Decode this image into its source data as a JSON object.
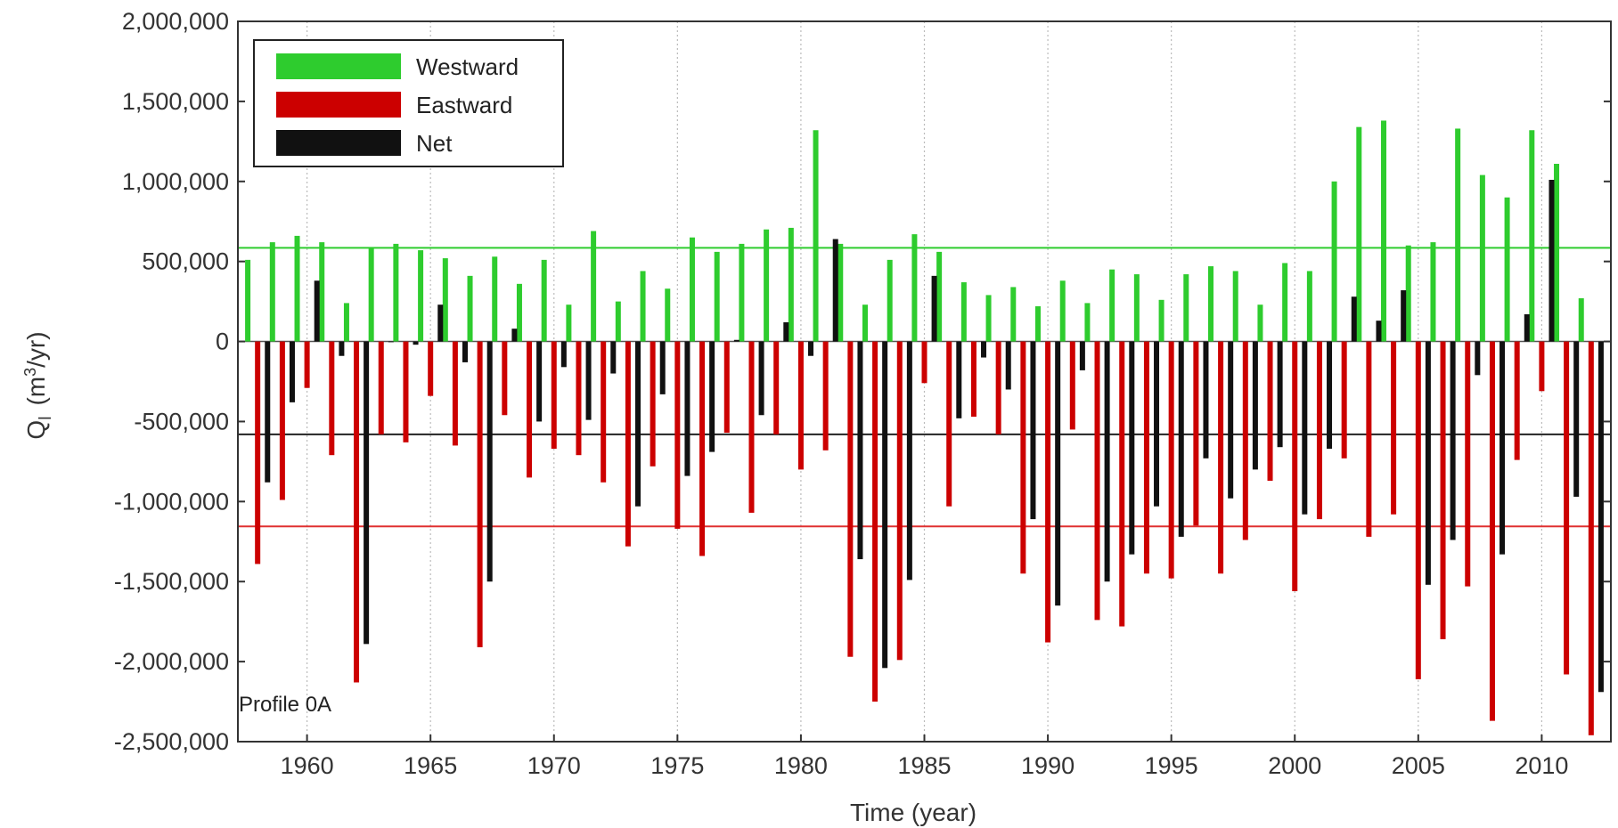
{
  "chart_data": {
    "type": "bar",
    "xlabel": "Time  (year)",
    "ylabel_main": "Q",
    "ylabel_sub": "l",
    "ylabel_unit_pre": "(m",
    "ylabel_unit_sup": "3",
    "ylabel_unit_post": "/yr)",
    "annotation": "Profile 0A",
    "xlim": [
      1957.2,
      2012.8
    ],
    "ylim": [
      -2500000,
      2000000
    ],
    "x_ticks": [
      1960,
      1965,
      1970,
      1975,
      1980,
      1985,
      1990,
      1995,
      2000,
      2005,
      2010
    ],
    "x_tick_labels": [
      "1960",
      "1965",
      "1970",
      "1975",
      "1980",
      "1985",
      "1990",
      "1995",
      "2000",
      "2005",
      "2010"
    ],
    "y_ticks": [
      -2500000,
      -2000000,
      -1500000,
      -1000000,
      -500000,
      0,
      500000,
      1000000,
      1500000,
      2000000
    ],
    "y_tick_labels": [
      "-2,500,000",
      "-2,000,000",
      "-1,500,000",
      "-1,000,000",
      "-500,000",
      "0",
      "500,000",
      "1,000,000",
      "1,500,000",
      "2,000,000"
    ],
    "grid": "vertical dotted at x ticks",
    "legend_position": "top-left",
    "years": [
      1958,
      1959,
      1960,
      1961,
      1962,
      1963,
      1964,
      1965,
      1966,
      1967,
      1968,
      1969,
      1970,
      1971,
      1972,
      1973,
      1974,
      1975,
      1976,
      1977,
      1978,
      1979,
      1980,
      1981,
      1982,
      1983,
      1984,
      1985,
      1986,
      1987,
      1988,
      1989,
      1990,
      1991,
      1992,
      1993,
      1994,
      1995,
      1996,
      1997,
      1998,
      1999,
      2000,
      2001,
      2002,
      2003,
      2004,
      2005,
      2006,
      2007,
      2008,
      2009,
      2010,
      2011,
      2012
    ],
    "series": [
      {
        "name": "Westward",
        "color": "#2ecc2e",
        "values": [
          510000,
          620000,
          660000,
          620000,
          240000,
          590000,
          610000,
          570000,
          520000,
          410000,
          530000,
          360000,
          510000,
          230000,
          690000,
          250000,
          440000,
          330000,
          650000,
          560000,
          610000,
          700000,
          710000,
          1320000,
          610000,
          230000,
          510000,
          670000,
          560000,
          370000,
          290000,
          340000,
          220000,
          380000,
          240000,
          450000,
          420000,
          260000,
          420000,
          470000,
          440000,
          230000,
          490000,
          440000,
          1000000,
          1340000,
          1380000,
          600000,
          620000,
          1330000,
          1040000,
          900000,
          1320000,
          1110000,
          270000
        ]
      },
      {
        "name": "Eastward",
        "color": "#cc0000",
        "values": [
          -1390000,
          -990000,
          -290000,
          -710000,
          -2130000,
          -580000,
          -630000,
          -340000,
          -650000,
          -1910000,
          -460000,
          -850000,
          -670000,
          -710000,
          -880000,
          -1280000,
          -780000,
          -1170000,
          -1340000,
          -570000,
          -1070000,
          -580000,
          -800000,
          -680000,
          -1970000,
          -2250000,
          -1990000,
          -260000,
          -1030000,
          -470000,
          -580000,
          -1450000,
          -1880000,
          -550000,
          -1740000,
          -1780000,
          -1450000,
          -1480000,
          -1150000,
          -1450000,
          -1240000,
          -870000,
          -1560000,
          -1110000,
          -730000,
          -1220000,
          -1080000,
          -2110000,
          -1860000,
          -1530000,
          -2370000,
          -740000,
          -310000,
          -2080000,
          -2460000
        ]
      },
      {
        "name": "Net",
        "color": "#111111",
        "values": [
          -880000,
          -380000,
          380000,
          -90000,
          -1890000,
          0,
          -20000,
          230000,
          -130000,
          -1500000,
          80000,
          -500000,
          -160000,
          -490000,
          -200000,
          -1030000,
          -330000,
          -840000,
          -690000,
          10000,
          -460000,
          120000,
          -90000,
          640000,
          -1360000,
          -2040000,
          -1490000,
          410000,
          -480000,
          -100000,
          -300000,
          -1110000,
          -1650000,
          -180000,
          -1500000,
          -1330000,
          -1030000,
          -1220000,
          -730000,
          -980000,
          -800000,
          -660000,
          -1080000,
          -670000,
          280000,
          130000,
          320000,
          -1520000,
          -1240000,
          -210000,
          -1330000,
          170000,
          1010000,
          -970000,
          -2190000
        ]
      }
    ],
    "reference_lines": [
      {
        "series": "Westward",
        "value": 585000,
        "color": "#2ecc2e"
      },
      {
        "series": "Net",
        "value": -580000,
        "color": "#222222"
      },
      {
        "series": "Eastward",
        "value": -1155000,
        "color": "#e03030"
      }
    ]
  }
}
